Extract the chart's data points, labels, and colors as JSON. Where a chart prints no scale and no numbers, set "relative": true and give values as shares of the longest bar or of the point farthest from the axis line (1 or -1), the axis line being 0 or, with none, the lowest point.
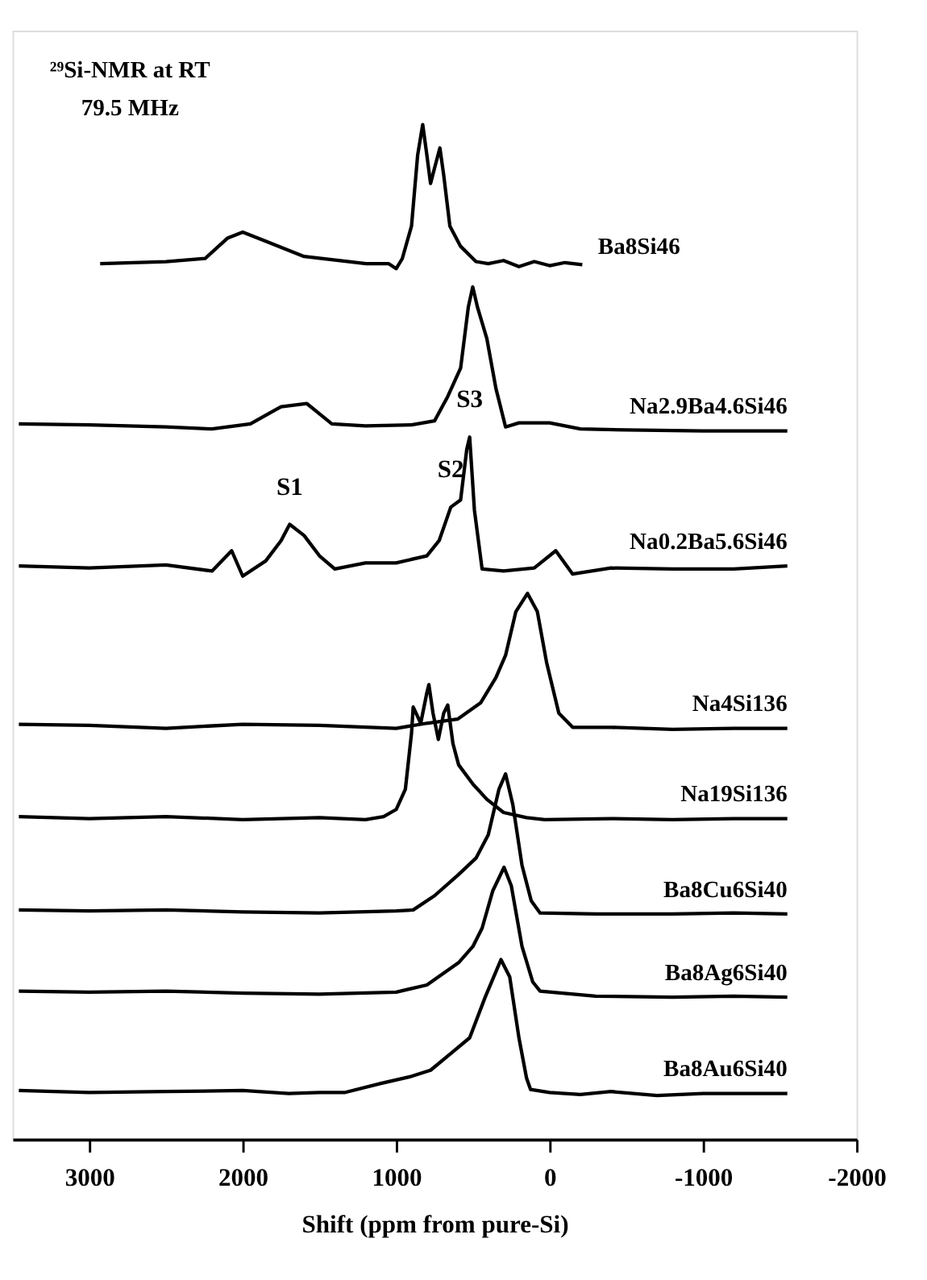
{
  "chart_data": {
    "type": "line",
    "relative": true,
    "xlabel": "Shift  (ppm from pure-Si)",
    "xlim": [
      3500,
      -2000
    ],
    "xticks": [
      3000,
      2000,
      1000,
      0,
      -1000,
      -2000
    ],
    "grid": false,
    "line_style": "solid",
    "marker": "none",
    "annotations": [
      "²⁹Si-NMR at RT",
      "79.5 MHz",
      {
        "text": "S1",
        "x": 1694,
        "y": 0.606
      },
      {
        "text": "S2",
        "x": 644,
        "y": 0.623
      },
      {
        "text": "S3",
        "x": 521,
        "y": 0.692
      }
    ],
    "series": [
      {
        "name": "Ba8Si46",
        "color": "#000000",
        "x": [
          2929,
          2500,
          2245,
          2100,
          2000,
          1850,
          1600,
          1195,
          1050,
          1000,
          960,
          900,
          860,
          827,
          800,
          776,
          745,
          715,
          690,
          650,
          580,
          480,
          400,
          300,
          200,
          100,
          0,
          -100,
          -213
        ],
        "values": [
          0.863,
          0.865,
          0.868,
          0.888,
          0.894,
          0.885,
          0.87,
          0.863,
          0.863,
          0.858,
          0.868,
          0.9,
          0.97,
          1.0,
          0.97,
          0.942,
          0.96,
          0.977,
          0.95,
          0.9,
          0.88,
          0.865,
          0.863,
          0.866,
          0.86,
          0.865,
          0.861,
          0.864,
          0.862
        ]
      },
      {
        "name": "Na2.9Ba4.6Si46",
        "color": "#000000",
        "x": [
          3459,
          3000,
          2500,
          2200,
          1950,
          1868,
          1750,
          1582,
          1500,
          1419,
          1200,
          900,
          750,
          664,
          580,
          530,
          501,
          470,
          409,
          350,
          287,
          200,
          0,
          -200,
          -500,
          -1000,
          -1549
        ],
        "values": [
          0.705,
          0.704,
          0.702,
          0.7,
          0.705,
          0.712,
          0.722,
          0.725,
          0.715,
          0.705,
          0.703,
          0.704,
          0.708,
          0.732,
          0.76,
          0.82,
          0.84,
          0.82,
          0.789,
          0.74,
          0.702,
          0.706,
          0.706,
          0.7,
          0.699,
          0.698,
          0.698
        ]
      },
      {
        "name": "Na0.2Ba5.6Si46",
        "color": "#000000",
        "x": [
          3459,
          3000,
          2500,
          2200,
          2072,
          2000,
          1850,
          1750,
          1694,
          1600,
          1500,
          1400,
          1200,
          1000,
          800,
          720,
          644,
          580,
          540,
          521,
          490,
          440,
          300,
          100,
          -40,
          -150,
          -400,
          -800,
          -1200,
          -1549
        ],
        "values": [
          0.565,
          0.563,
          0.566,
          0.56,
          0.58,
          0.555,
          0.57,
          0.59,
          0.606,
          0.595,
          0.575,
          0.562,
          0.568,
          0.568,
          0.575,
          0.59,
          0.623,
          0.63,
          0.68,
          0.692,
          0.62,
          0.562,
          0.56,
          0.563,
          0.58,
          0.557,
          0.563,
          0.562,
          0.562,
          0.565
        ]
      },
      {
        "name": "Na4Si136",
        "color": "#000000",
        "x": [
          3459,
          3000,
          2500,
          2000,
          1500,
          1000,
          800,
          600,
          450,
          350,
          287,
          220,
          144,
          80,
          20,
          -60,
          -150,
          -400,
          -800,
          -1200,
          -1549
        ],
        "values": [
          0.409,
          0.408,
          0.405,
          0.409,
          0.408,
          0.405,
          0.41,
          0.414,
          0.43,
          0.455,
          0.477,
          0.52,
          0.538,
          0.52,
          0.47,
          0.42,
          0.406,
          0.406,
          0.404,
          0.405,
          0.405
        ]
      },
      {
        "name": "Na19Si136",
        "color": "#000000",
        "x": [
          3459,
          3000,
          2500,
          2000,
          1500,
          1200,
          1082,
          1000,
          940,
          900,
          889,
          840,
          800,
          787,
          760,
          725,
          690,
          664,
          630,
          593,
          500,
          409,
          300,
          150,
          32,
          -400,
          -800,
          -1200,
          -1549
        ],
        "values": [
          0.318,
          0.316,
          0.318,
          0.315,
          0.317,
          0.315,
          0.318,
          0.325,
          0.345,
          0.4,
          0.426,
          0.41,
          0.44,
          0.448,
          0.42,
          0.394,
          0.42,
          0.428,
          0.39,
          0.369,
          0.35,
          0.335,
          0.322,
          0.317,
          0.315,
          0.316,
          0.315,
          0.316,
          0.316
        ]
      },
      {
        "name": "Ba8Cu6Si40",
        "color": "#000000",
        "x": [
          3459,
          3000,
          2500,
          2000,
          1500,
          1000,
          889,
          750,
          600,
          480,
          400,
          330,
          287,
          240,
          180,
          120,
          62,
          -300,
          -800,
          -1200,
          -1549
        ],
        "values": [
          0.226,
          0.225,
          0.226,
          0.224,
          0.223,
          0.225,
          0.226,
          0.24,
          0.26,
          0.277,
          0.3,
          0.345,
          0.36,
          0.33,
          0.27,
          0.235,
          0.223,
          0.222,
          0.222,
          0.223,
          0.222
        ]
      },
      {
        "name": "Ba8Ag6Si40",
        "color": "#000000",
        "x": [
          3459,
          3000,
          2500,
          2000,
          1500,
          1000,
          800,
          593,
          500,
          440,
          370,
          297,
          250,
          180,
          110,
          62,
          -300,
          -800,
          -1200,
          -1549
        ],
        "values": [
          0.146,
          0.145,
          0.146,
          0.144,
          0.143,
          0.145,
          0.152,
          0.174,
          0.19,
          0.208,
          0.245,
          0.268,
          0.25,
          0.19,
          0.155,
          0.146,
          0.141,
          0.14,
          0.141,
          0.14
        ]
      },
      {
        "name": "Ba8Au6Si40",
        "color": "#000000",
        "x": [
          3459,
          3000,
          2500,
          2000,
          1700,
          1500,
          1337,
          1100,
          900,
          776,
          640,
          521,
          420,
          317,
          260,
          200,
          150,
          124,
          0,
          -200,
          -400,
          -700,
          -1000,
          -1549
        ],
        "values": [
          0.048,
          0.046,
          0.047,
          0.048,
          0.045,
          0.046,
          0.046,
          0.055,
          0.062,
          0.068,
          0.085,
          0.1,
          0.14,
          0.177,
          0.16,
          0.1,
          0.06,
          0.049,
          0.046,
          0.044,
          0.047,
          0.043,
          0.045,
          0.045
        ]
      }
    ]
  }
}
